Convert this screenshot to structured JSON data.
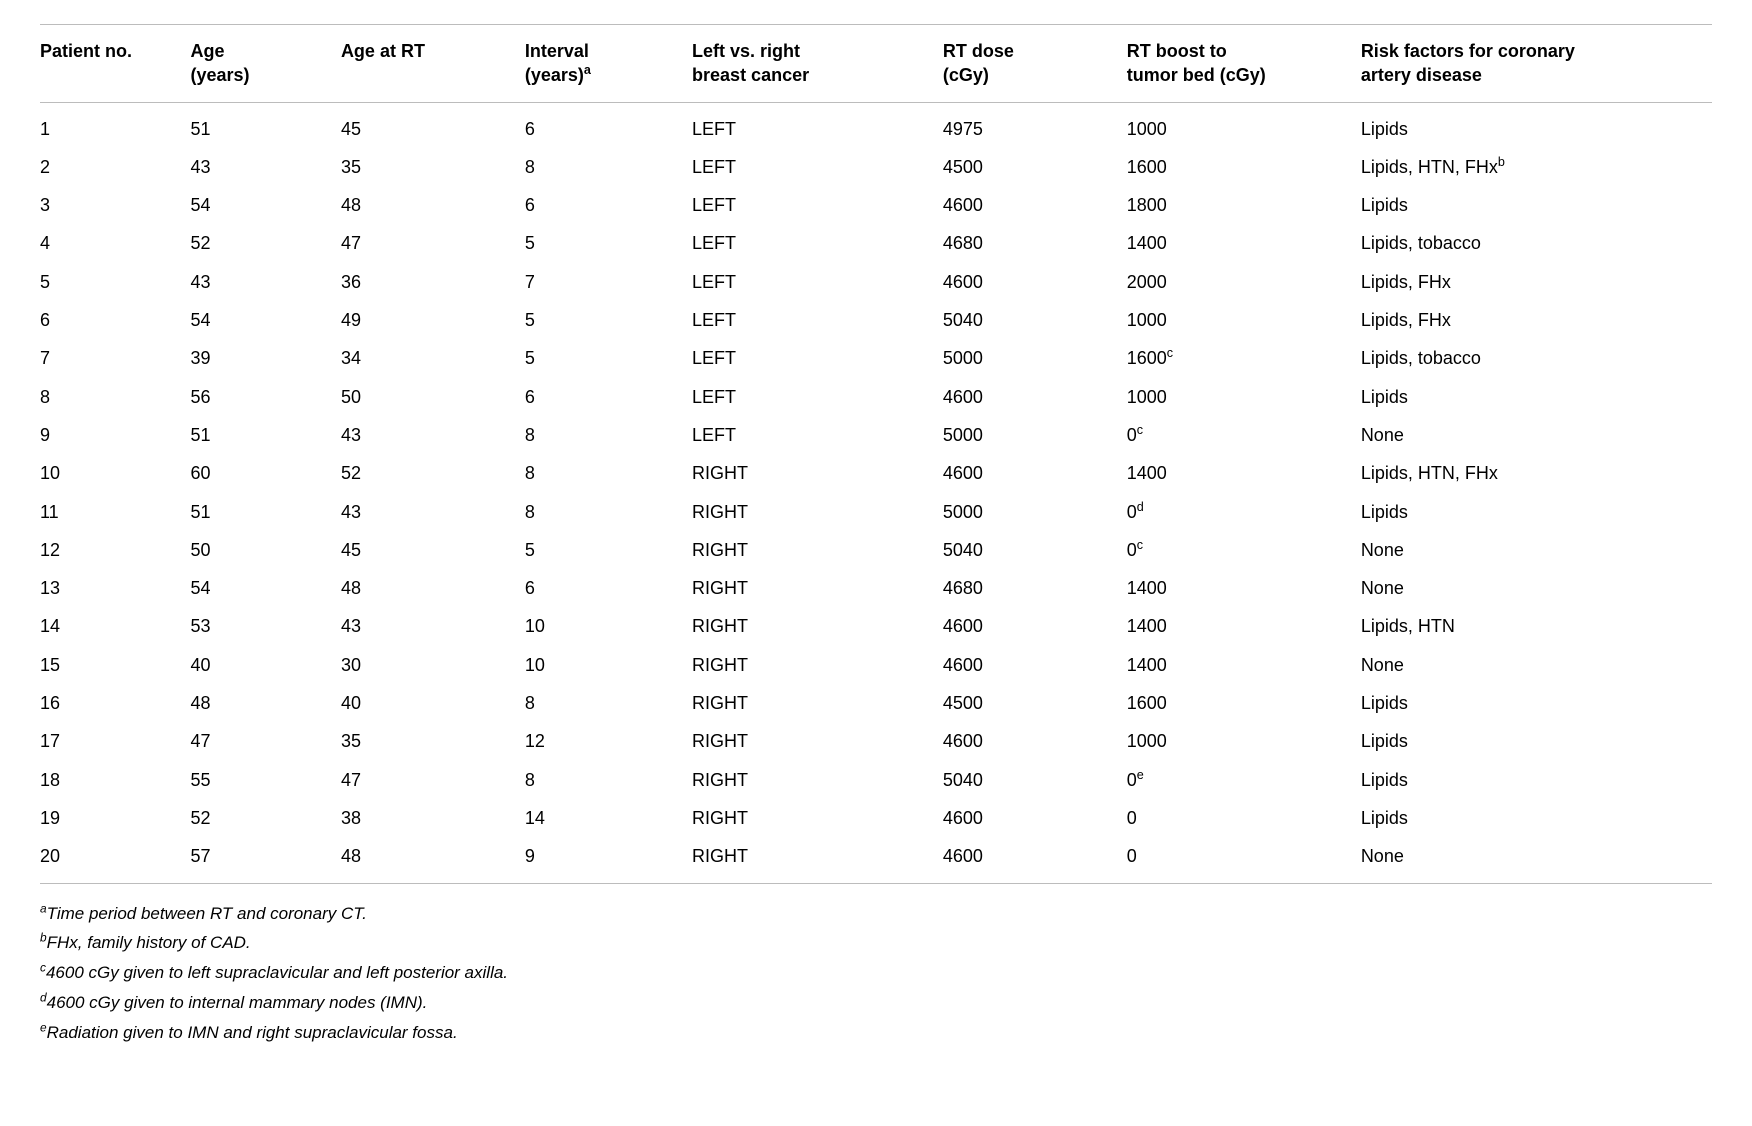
{
  "table": {
    "columns": [
      {
        "key": "patient",
        "line1": "Patient no.",
        "line1_sup": "",
        "line2": "",
        "line2_sup": ""
      },
      {
        "key": "age",
        "line1": "Age",
        "line1_sup": "",
        "line2": "(years)",
        "line2_sup": ""
      },
      {
        "key": "agert",
        "line1": "Age at RT",
        "line1_sup": "",
        "line2": "",
        "line2_sup": ""
      },
      {
        "key": "interval",
        "line1": "Interval",
        "line1_sup": "",
        "line2": "(years)",
        "line2_sup": "a"
      },
      {
        "key": "side",
        "line1": "Left vs. right",
        "line1_sup": "",
        "line2": "breast cancer",
        "line2_sup": ""
      },
      {
        "key": "dose",
        "line1": "RT dose",
        "line1_sup": "",
        "line2": "(cGy)",
        "line2_sup": ""
      },
      {
        "key": "boost",
        "line1": "RT boost to",
        "line1_sup": "",
        "line2": "tumor bed (cGy)",
        "line2_sup": ""
      },
      {
        "key": "risk",
        "line1": "Risk factors for coronary",
        "line1_sup": "",
        "line2": "artery disease",
        "line2_sup": ""
      }
    ],
    "col_classes": [
      "col-patient",
      "col-age",
      "col-agert",
      "col-interval",
      "col-side",
      "col-dose",
      "col-boost",
      "col-risk"
    ],
    "rows": [
      {
        "patient": "1",
        "age": "51",
        "agert": "45",
        "interval": "6",
        "side": "LEFT",
        "dose": "4975",
        "boost": "1000",
        "boost_sup": "",
        "risk": "Lipids",
        "risk_sup": ""
      },
      {
        "patient": "2",
        "age": "43",
        "agert": "35",
        "interval": "8",
        "side": "LEFT",
        "dose": "4500",
        "boost": "1600",
        "boost_sup": "",
        "risk": "Lipids, HTN, FHx",
        "risk_sup": "b"
      },
      {
        "patient": "3",
        "age": "54",
        "agert": "48",
        "interval": "6",
        "side": "LEFT",
        "dose": "4600",
        "boost": "1800",
        "boost_sup": "",
        "risk": "Lipids",
        "risk_sup": ""
      },
      {
        "patient": "4",
        "age": "52",
        "agert": "47",
        "interval": "5",
        "side": "LEFT",
        "dose": "4680",
        "boost": "1400",
        "boost_sup": "",
        "risk": "Lipids, tobacco",
        "risk_sup": ""
      },
      {
        "patient": "5",
        "age": "43",
        "agert": "36",
        "interval": "7",
        "side": "LEFT",
        "dose": "4600",
        "boost": "2000",
        "boost_sup": "",
        "risk": "Lipids, FHx",
        "risk_sup": ""
      },
      {
        "patient": "6",
        "age": "54",
        "agert": "49",
        "interval": "5",
        "side": "LEFT",
        "dose": "5040",
        "boost": "1000",
        "boost_sup": "",
        "risk": "Lipids, FHx",
        "risk_sup": ""
      },
      {
        "patient": "7",
        "age": "39",
        "agert": "34",
        "interval": "5",
        "side": "LEFT",
        "dose": "5000",
        "boost": "1600",
        "boost_sup": "c",
        "risk": "Lipids, tobacco",
        "risk_sup": ""
      },
      {
        "patient": "8",
        "age": "56",
        "agert": "50",
        "interval": "6",
        "side": "LEFT",
        "dose": "4600",
        "boost": "1000",
        "boost_sup": "",
        "risk": "Lipids",
        "risk_sup": ""
      },
      {
        "patient": "9",
        "age": "51",
        "agert": "43",
        "interval": "8",
        "side": "LEFT",
        "dose": "5000",
        "boost": "0",
        "boost_sup": "c",
        "risk": "None",
        "risk_sup": ""
      },
      {
        "patient": "10",
        "age": "60",
        "agert": "52",
        "interval": "8",
        "side": "RIGHT",
        "dose": "4600",
        "boost": "1400",
        "boost_sup": "",
        "risk": "Lipids, HTN, FHx",
        "risk_sup": ""
      },
      {
        "patient": "11",
        "age": "51",
        "agert": "43",
        "interval": "8",
        "side": "RIGHT",
        "dose": "5000",
        "boost": "0",
        "boost_sup": "d",
        "risk": "Lipids",
        "risk_sup": ""
      },
      {
        "patient": "12",
        "age": "50",
        "agert": "45",
        "interval": "5",
        "side": "RIGHT",
        "dose": "5040",
        "boost": "0",
        "boost_sup": "c",
        "risk": "None",
        "risk_sup": ""
      },
      {
        "patient": "13",
        "age": "54",
        "agert": "48",
        "interval": "6",
        "side": "RIGHT",
        "dose": "4680",
        "boost": "1400",
        "boost_sup": "",
        "risk": "None",
        "risk_sup": ""
      },
      {
        "patient": "14",
        "age": "53",
        "agert": "43",
        "interval": "10",
        "side": "RIGHT",
        "dose": "4600",
        "boost": "1400",
        "boost_sup": "",
        "risk": "Lipids, HTN",
        "risk_sup": ""
      },
      {
        "patient": "15",
        "age": "40",
        "agert": "30",
        "interval": "10",
        "side": "RIGHT",
        "dose": "4600",
        "boost": "1400",
        "boost_sup": "",
        "risk": "None",
        "risk_sup": ""
      },
      {
        "patient": "16",
        "age": "48",
        "agert": "40",
        "interval": "8",
        "side": "RIGHT",
        "dose": "4500",
        "boost": "1600",
        "boost_sup": "",
        "risk": "Lipids",
        "risk_sup": ""
      },
      {
        "patient": "17",
        "age": "47",
        "agert": "35",
        "interval": "12",
        "side": "RIGHT",
        "dose": "4600",
        "boost": "1000",
        "boost_sup": "",
        "risk": "Lipids",
        "risk_sup": ""
      },
      {
        "patient": "18",
        "age": "55",
        "agert": "47",
        "interval": "8",
        "side": "RIGHT",
        "dose": "5040",
        "boost": "0",
        "boost_sup": "e",
        "risk": "Lipids",
        "risk_sup": ""
      },
      {
        "patient": "19",
        "age": "52",
        "agert": "38",
        "interval": "14",
        "side": "RIGHT",
        "dose": "4600",
        "boost": "0",
        "boost_sup": "",
        "risk": "Lipids",
        "risk_sup": ""
      },
      {
        "patient": "20",
        "age": "57",
        "agert": "48",
        "interval": "9",
        "side": "RIGHT",
        "dose": "4600",
        "boost": "0",
        "boost_sup": "",
        "risk": "None",
        "risk_sup": ""
      }
    ]
  },
  "footnotes": [
    {
      "sup": "a",
      "text": "Time period between RT and coronary CT."
    },
    {
      "sup": "b",
      "text": "FHx, family history of CAD."
    },
    {
      "sup": "c",
      "text": "4600 cGy given to left supraclavicular and left posterior axilla."
    },
    {
      "sup": "d",
      "text": "4600 cGy given to internal mammary nodes (IMN)."
    },
    {
      "sup": "e",
      "text": "Radiation given to IMN and right supraclavicular fossa."
    }
  ]
}
